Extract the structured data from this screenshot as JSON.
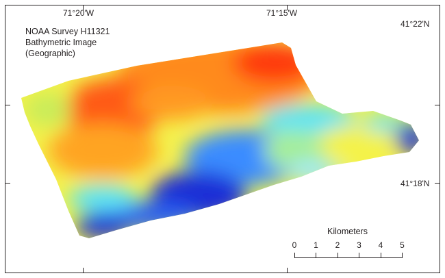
{
  "title_block": {
    "line1": "NOAA Survey H11321",
    "line2": "Bathymetric Image",
    "line3": "(Geographic)"
  },
  "coordinate_labels": {
    "lon_left": "71°20'W",
    "lon_right": "71°15'W",
    "lat_top": "41°22'N",
    "lat_bottom": "41°18'N"
  },
  "scale_bar": {
    "title": "Kilometers",
    "ticks": [
      "0",
      "1",
      "2",
      "3",
      "4",
      "5"
    ]
  },
  "colors": {
    "deep": "#1a2fd6",
    "mid_deep": "#3b8cff",
    "mid": "#5fe3f5",
    "mid_shallow": "#f4f24a",
    "shallow": "#ff8a1e",
    "shallowest": "#ff3b10",
    "frame": "#231f20"
  }
}
